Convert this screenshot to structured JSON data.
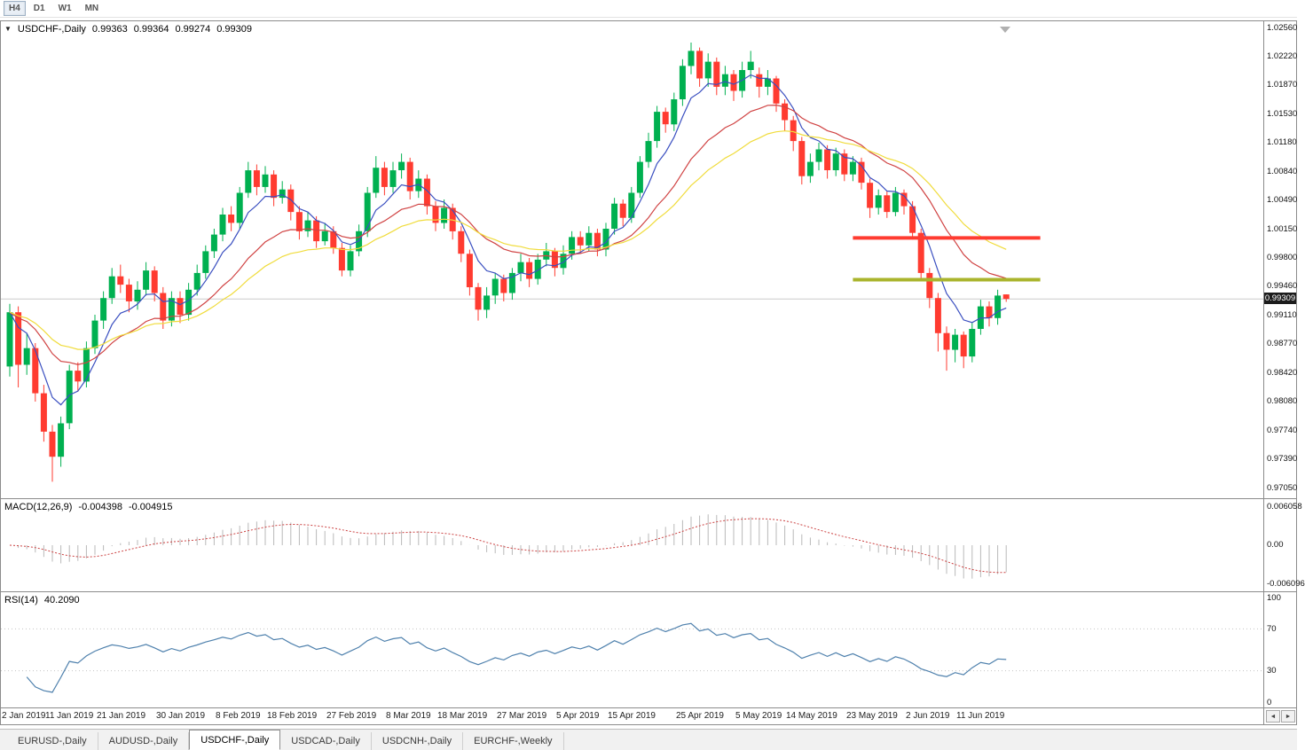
{
  "toolbar": {
    "buttons": [
      {
        "label": "H4",
        "pressed": true
      },
      {
        "label": "D1",
        "pressed": false
      },
      {
        "label": "W1",
        "pressed": false
      },
      {
        "label": "MN",
        "pressed": false
      }
    ]
  },
  "chart": {
    "header": {
      "dropdown_icon": "▼",
      "symbol": "USDCHF-,Daily",
      "open": "0.99363",
      "high": "0.99364",
      "low": "0.99274",
      "close": "0.99309"
    },
    "current_price": "0.99309",
    "price_axis_labels": [
      "1.02560",
      "1.02220",
      "1.01870",
      "1.01530",
      "1.01180",
      "1.00840",
      "1.00490",
      "1.00150",
      "0.99800",
      "0.99460",
      "0.99110",
      "0.98770",
      "0.98420",
      "0.98080",
      "0.97740",
      "0.97390",
      "0.97050"
    ],
    "macd": {
      "label": "MACD(12,26,9)",
      "value_main": "-0.004398",
      "value_signal": "-0.004915"
    },
    "macd_axis": [
      "0.006058",
      "0.00",
      "-0.006096"
    ],
    "rsi": {
      "label": "RSI(14)",
      "value": "40.2090"
    },
    "rsi_axis": [
      "100",
      "70",
      "30",
      "0"
    ],
    "date_axis": [
      {
        "label": "2 Jan 2019",
        "i": 0
      },
      {
        "label": "11 Jan 2019",
        "i": 7
      },
      {
        "label": "21 Jan 2019",
        "i": 13
      },
      {
        "label": "30 Jan 2019",
        "i": 20
      },
      {
        "label": "8 Feb 2019",
        "i": 27
      },
      {
        "label": "18 Feb 2019",
        "i": 33
      },
      {
        "label": "27 Feb 2019",
        "i": 40
      },
      {
        "label": "8 Mar 2019",
        "i": 47
      },
      {
        "label": "18 Mar 2019",
        "i": 53
      },
      {
        "label": "27 Mar 2019",
        "i": 60
      },
      {
        "label": "5 Apr 2019",
        "i": 67
      },
      {
        "label": "15 Apr 2019",
        "i": 73
      },
      {
        "label": "25 Apr 2019",
        "i": 81
      },
      {
        "label": "5 May 2019",
        "i": 88
      },
      {
        "label": "14 May 2019",
        "i": 94
      },
      {
        "label": "23 May 2019",
        "i": 101
      },
      {
        "label": "2 Jun 2019",
        "i": 108
      },
      {
        "label": "11 Jun 2019",
        "i": 114
      }
    ],
    "scroll": {
      "left_icon": "◄",
      "right_icon": "►"
    }
  },
  "tabs": [
    {
      "label": "EURUSD-,Daily",
      "active": false
    },
    {
      "label": "AUDUSD-,Daily",
      "active": false
    },
    {
      "label": "USDCHF-,Daily",
      "active": true
    },
    {
      "label": "USDCAD-,Daily",
      "active": false
    },
    {
      "label": "USDCNH-,Daily",
      "active": false
    },
    {
      "label": "EURCHF-,Weekly",
      "active": false
    }
  ],
  "chart_data": {
    "type": "candlestick",
    "symbol": "USDCHF",
    "timeframe": "Daily",
    "y_max": 1.0256,
    "y_min": 0.9705,
    "current_price": 0.99309,
    "colors": {
      "up": "#00b050",
      "down": "#ff3b30",
      "price_line": "#cccccc",
      "shift_marker": "#b0b0b0"
    },
    "candles": [
      [
        0.985,
        0.9925,
        0.9838,
        0.9915
      ],
      [
        0.9915,
        0.9922,
        0.9825,
        0.9852
      ],
      [
        0.9852,
        0.989,
        0.984,
        0.9872
      ],
      [
        0.9872,
        0.9878,
        0.9808,
        0.9818
      ],
      [
        0.9818,
        0.9828,
        0.976,
        0.9772
      ],
      [
        0.9772,
        0.978,
        0.9712,
        0.9742
      ],
      [
        0.9742,
        0.979,
        0.973,
        0.9782
      ],
      [
        0.9782,
        0.9852,
        0.9775,
        0.9845
      ],
      [
        0.9845,
        0.9855,
        0.982,
        0.9832
      ],
      [
        0.9832,
        0.988,
        0.9825,
        0.9872
      ],
      [
        0.9872,
        0.9912,
        0.9865,
        0.9905
      ],
      [
        0.9905,
        0.994,
        0.9895,
        0.9932
      ],
      [
        0.9932,
        0.9968,
        0.9925,
        0.9958
      ],
      [
        0.9958,
        0.9972,
        0.9938,
        0.9948
      ],
      [
        0.9948,
        0.9955,
        0.9915,
        0.9928
      ],
      [
        0.9928,
        0.9952,
        0.9918,
        0.9942
      ],
      [
        0.9942,
        0.9975,
        0.9935,
        0.9965
      ],
      [
        0.9965,
        0.997,
        0.9928,
        0.9938
      ],
      [
        0.9938,
        0.9945,
        0.9895,
        0.9905
      ],
      [
        0.9905,
        0.994,
        0.9898,
        0.9932
      ],
      [
        0.9932,
        0.994,
        0.9902,
        0.9912
      ],
      [
        0.9912,
        0.995,
        0.9905,
        0.9942
      ],
      [
        0.9942,
        0.9972,
        0.9935,
        0.9962
      ],
      [
        0.9962,
        0.9995,
        0.9955,
        0.9988
      ],
      [
        0.9988,
        1.0015,
        0.998,
        1.0008
      ],
      [
        1.0008,
        1.004,
        1.0,
        1.0032
      ],
      [
        1.0032,
        1.0042,
        1.0012,
        1.0022
      ],
      [
        1.0022,
        1.0065,
        1.0015,
        1.0058
      ],
      [
        1.0058,
        1.0095,
        1.0052,
        1.0085
      ],
      [
        1.0085,
        1.0092,
        1.0055,
        1.0065
      ],
      [
        1.0065,
        1.009,
        1.0058,
        1.008
      ],
      [
        1.008,
        1.0085,
        1.0042,
        1.0052
      ],
      [
        1.0052,
        1.0072,
        1.0045,
        1.0062
      ],
      [
        1.0062,
        1.0068,
        1.0025,
        1.0035
      ],
      [
        1.0035,
        1.0042,
        1.0002,
        1.0012
      ],
      [
        1.0012,
        1.0035,
        1.0005,
        1.0025
      ],
      [
        1.0025,
        1.003,
        0.9992,
        1.0
      ],
      [
        1.0,
        1.0022,
        0.9995,
        1.0012
      ],
      [
        1.0012,
        1.0018,
        0.9985,
        0.9992
      ],
      [
        0.9992,
        0.9998,
        0.9958,
        0.9965
      ],
      [
        0.9965,
        0.9995,
        0.9958,
        0.9988
      ],
      [
        0.9988,
        1.002,
        0.9982,
        1.0012
      ],
      [
        1.0012,
        1.0065,
        1.0005,
        1.0058
      ],
      [
        1.0058,
        1.0102,
        1.0052,
        1.0088
      ],
      [
        1.0088,
        1.0095,
        1.0055,
        1.0065
      ],
      [
        1.0065,
        1.0095,
        1.0058,
        1.0085
      ],
      [
        1.0085,
        1.0105,
        1.0075,
        1.0095
      ],
      [
        1.0095,
        1.01,
        1.005,
        1.006
      ],
      [
        1.006,
        1.0085,
        1.0052,
        1.0075
      ],
      [
        1.0075,
        1.008,
        1.0032,
        1.0042
      ],
      [
        1.0042,
        1.0048,
        1.0012,
        1.0022
      ],
      [
        1.0022,
        1.005,
        1.0015,
        1.004
      ],
      [
        1.004,
        1.0045,
        1.0002,
        1.0012
      ],
      [
        1.0012,
        1.0018,
        0.9975,
        0.9985
      ],
      [
        0.9985,
        0.999,
        0.9935,
        0.9945
      ],
      [
        0.9945,
        0.995,
        0.9905,
        0.9918
      ],
      [
        0.9918,
        0.9945,
        0.9908,
        0.9935
      ],
      [
        0.9935,
        0.9962,
        0.9925,
        0.9955
      ],
      [
        0.9955,
        0.996,
        0.9928,
        0.9938
      ],
      [
        0.9938,
        0.9968,
        0.993,
        0.9962
      ],
      [
        0.9962,
        0.9985,
        0.9952,
        0.9975
      ],
      [
        0.9975,
        0.998,
        0.9945,
        0.9955
      ],
      [
        0.9955,
        0.9985,
        0.9948,
        0.9978
      ],
      [
        0.9978,
        0.9998,
        0.997,
        0.9988
      ],
      [
        0.9988,
        0.9992,
        0.9958,
        0.9968
      ],
      [
        0.9968,
        0.9995,
        0.996,
        0.9985
      ],
      [
        0.9985,
        1.0012,
        0.9978,
        1.0005
      ],
      [
        1.0005,
        1.0012,
        0.9985,
        0.9995
      ],
      [
        0.9995,
        1.0018,
        0.9988,
        1.001
      ],
      [
        1.001,
        1.0015,
        0.9982,
        0.999
      ],
      [
        0.999,
        1.0022,
        0.9982,
        1.0015
      ],
      [
        1.0015,
        1.0052,
        1.0008,
        1.0045
      ],
      [
        1.0045,
        1.005,
        1.0018,
        1.0028
      ],
      [
        1.0028,
        1.0065,
        1.0022,
        1.0058
      ],
      [
        1.0058,
        1.0102,
        1.0052,
        1.0095
      ],
      [
        1.0095,
        1.013,
        1.0088,
        1.012
      ],
      [
        1.012,
        1.0162,
        1.0112,
        1.0155
      ],
      [
        1.0155,
        1.016,
        1.013,
        1.014
      ],
      [
        1.014,
        1.0178,
        1.0132,
        1.017
      ],
      [
        1.017,
        1.0218,
        1.0162,
        1.021
      ],
      [
        1.021,
        1.0238,
        1.02,
        1.0228
      ],
      [
        1.0228,
        1.0232,
        1.0185,
        1.0195
      ],
      [
        1.0195,
        1.0225,
        1.0185,
        1.0215
      ],
      [
        1.0215,
        1.022,
        1.0175,
        1.0185
      ],
      [
        1.0185,
        1.021,
        1.0175,
        1.02
      ],
      [
        1.02,
        1.0205,
        1.0168,
        1.018
      ],
      [
        1.018,
        1.0215,
        1.0172,
        1.0205
      ],
      [
        1.0205,
        1.0228,
        1.0195,
        1.0215
      ],
      [
        1.02,
        1.0208,
        1.0172,
        1.0185
      ],
      [
        1.0185,
        1.0205,
        1.0175,
        1.0195
      ],
      [
        1.0195,
        1.0198,
        1.0155,
        1.0165
      ],
      [
        1.0165,
        1.017,
        1.0132,
        1.0145
      ],
      [
        1.0145,
        1.015,
        1.0108,
        1.012
      ],
      [
        1.012,
        1.0125,
        1.0068,
        1.0078
      ],
      [
        1.0078,
        1.0105,
        1.007,
        1.0095
      ],
      [
        1.0095,
        1.0118,
        1.0085,
        1.011
      ],
      [
        1.011,
        1.0115,
        1.0075,
        1.0085
      ],
      [
        1.0085,
        1.0112,
        1.0078,
        1.0105
      ],
      [
        1.0105,
        1.011,
        1.0072,
        1.008
      ],
      [
        1.008,
        1.0102,
        1.0072,
        1.0095
      ],
      [
        1.0095,
        1.01,
        1.0062,
        1.007
      ],
      [
        1.007,
        1.0075,
        1.0028,
        1.004
      ],
      [
        1.004,
        1.0062,
        1.0032,
        1.0055
      ],
      [
        1.0055,
        1.006,
        1.0028,
        1.0035
      ],
      [
        1.0035,
        1.0065,
        1.003,
        1.0058
      ],
      [
        1.0058,
        1.0062,
        1.0032,
        1.0042
      ],
      [
        1.0042,
        1.0048,
        1.0002,
        1.001
      ],
      [
        1.001,
        1.0015,
        0.9952,
        0.9962
      ],
      [
        0.9962,
        0.9968,
        0.992,
        0.9932
      ],
      [
        0.9932,
        0.9938,
        0.9868,
        0.989
      ],
      [
        0.989,
        0.9898,
        0.9845,
        0.987
      ],
      [
        0.987,
        0.9895,
        0.9855,
        0.9888
      ],
      [
        0.9888,
        0.9892,
        0.9848,
        0.9862
      ],
      [
        0.9862,
        0.9902,
        0.9855,
        0.9895
      ],
      [
        0.9895,
        0.993,
        0.9888,
        0.9922
      ],
      [
        0.9922,
        0.9928,
        0.9898,
        0.9908
      ],
      [
        0.9908,
        0.9942,
        0.99,
        0.9935
      ],
      [
        0.99363,
        0.99364,
        0.99274,
        0.99309
      ]
    ],
    "moving_averages": [
      {
        "type": "ema",
        "period": 6,
        "color": "#3a4fc0"
      },
      {
        "type": "ema",
        "period": 17,
        "color": "#d04343"
      },
      {
        "type": "ema",
        "period": 28,
        "color": "#f0dc3c"
      }
    ],
    "hlines": [
      {
        "name": "resistance-line",
        "price": 1.0004,
        "from_index": 99,
        "to_index": 121,
        "color": "#ff3b30",
        "width": 4
      },
      {
        "name": "support-line",
        "price": 0.9954,
        "from_index": 99,
        "to_index": 121,
        "color": "#aab42c",
        "width": 4
      }
    ],
    "indicators": {
      "macd": {
        "fast": 12,
        "slow": 26,
        "signal": 9,
        "scale": 0.0075,
        "histogram_color": "#b9b9b9",
        "signal_color": "#cc4444"
      },
      "rsi": {
        "period": 14,
        "color": "#4f81ad",
        "levels": [
          70,
          30
        ],
        "level_color": "#c4c4c4"
      }
    }
  }
}
